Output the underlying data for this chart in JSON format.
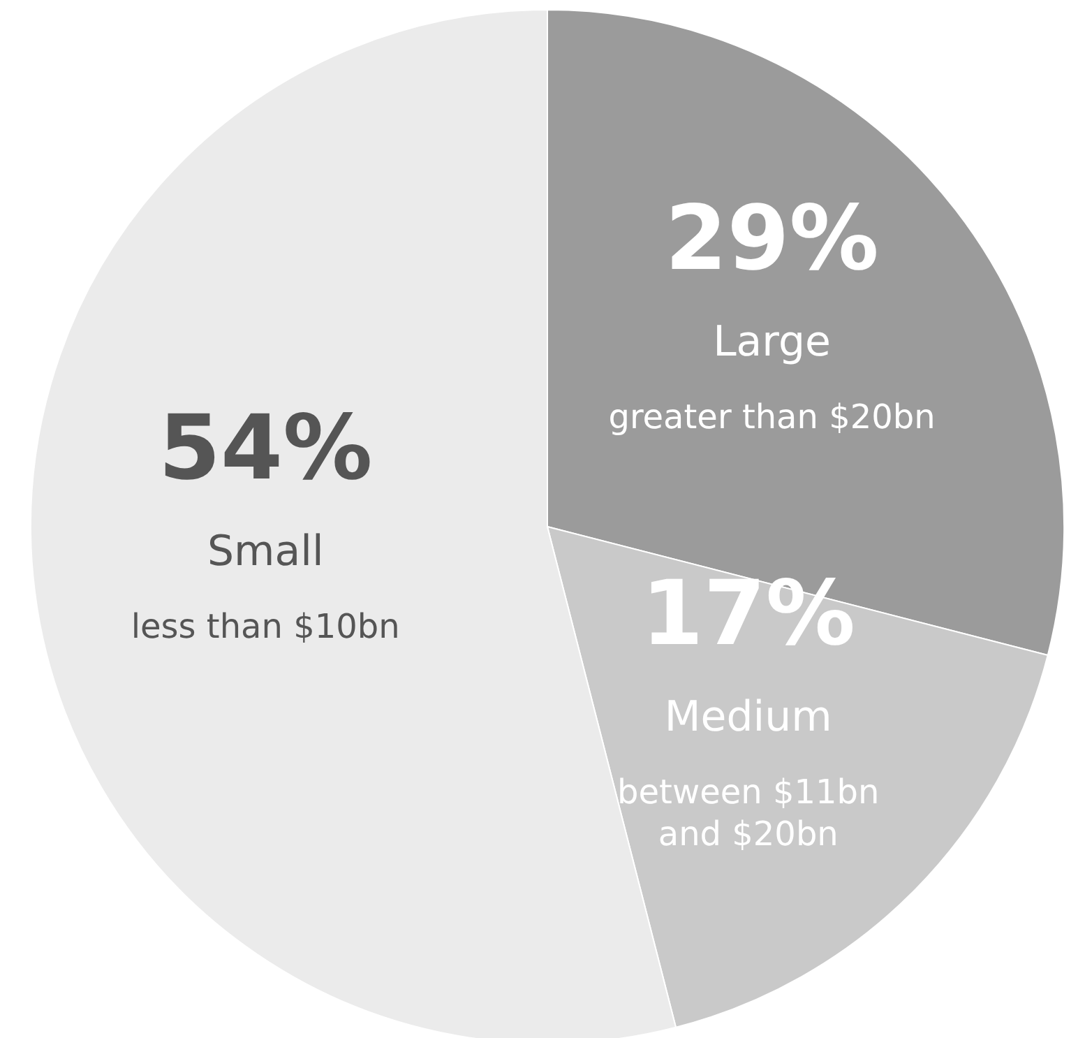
{
  "chart_data": {
    "type": "pie",
    "categories": [
      "Large\ngreater than $20bn",
      "Medium\nbetween $11bn\nand $20bn",
      "Small\nless than $10bn"
    ],
    "values": [
      29,
      17,
      54
    ],
    "colors": [
      "#9b9b9b",
      "#c9c9c9",
      "#ebebeb"
    ],
    "value_labels": [
      "29%",
      "17%",
      "54%"
    ]
  }
}
